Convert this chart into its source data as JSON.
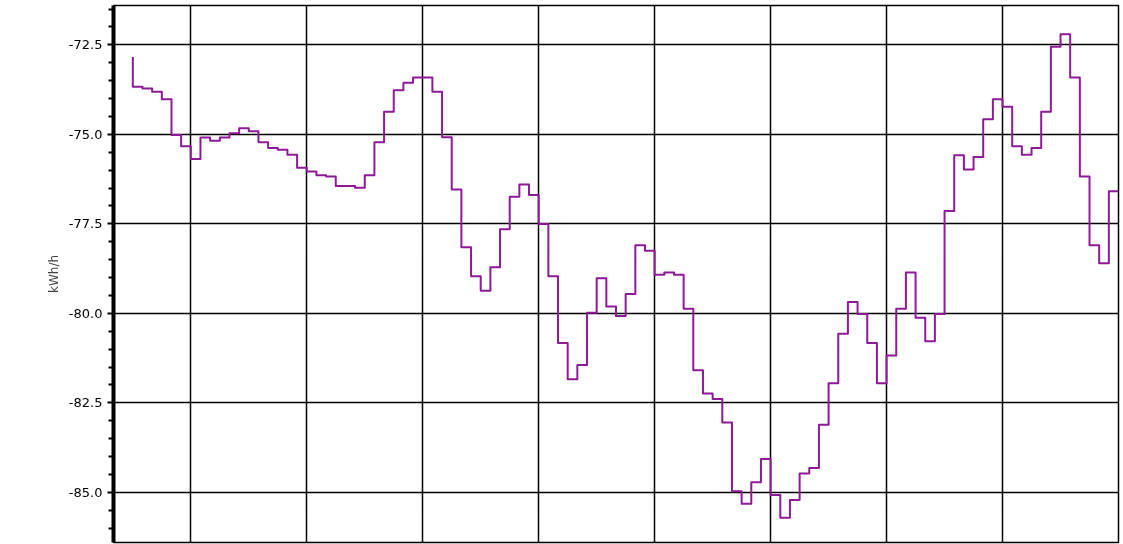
{
  "chart_data": {
    "type": "step",
    "ylabel": "kWh/h",
    "categories": [
      null,
      null,
      null,
      null,
      null,
      null,
      null,
      null,
      null,
      null,
      null,
      null,
      null,
      null,
      null,
      null,
      null,
      null,
      null,
      null,
      null,
      null,
      null,
      null,
      null,
      null,
      null,
      null,
      null,
      null,
      null,
      null,
      null,
      null,
      null,
      null,
      null,
      null,
      null,
      null,
      null,
      null,
      null,
      null,
      null,
      null,
      null,
      null,
      null,
      null,
      null,
      null,
      null,
      null,
      null,
      null,
      null,
      null,
      null,
      null,
      null,
      null,
      null,
      null,
      null,
      null,
      null,
      null,
      null,
      null,
      null,
      null,
      null,
      null,
      null,
      null,
      null,
      null,
      null,
      null,
      null,
      null,
      null,
      null,
      null,
      null,
      null,
      null,
      null,
      null,
      null,
      null,
      null,
      null,
      null,
      null,
      null,
      null,
      null,
      null,
      null,
      null,
      null
    ],
    "series": [
      {
        "color": "#8e1a98",
        "values": [
          -72.84,
          -73.67,
          -73.72,
          -73.81,
          -74.02,
          -75.02,
          -75.33,
          -75.69,
          -75.09,
          -75.18,
          -75.09,
          -74.97,
          -74.83,
          -74.91,
          -75.22,
          -75.38,
          -75.43,
          -75.57,
          -75.93,
          -76.04,
          -76.14,
          -76.18,
          -76.44,
          -76.44,
          -76.49,
          -76.14,
          -75.22,
          -74.37,
          -73.77,
          -73.56,
          -73.41,
          -73.41,
          -73.81,
          -75.08,
          -76.54,
          -78.15,
          -78.96,
          -79.37,
          -78.71,
          -77.65,
          -76.74,
          -76.4,
          -76.69,
          -77.5,
          -78.96,
          -80.83,
          -81.84,
          -81.44,
          -79.98,
          -79.02,
          -79.81,
          -80.07,
          -79.46,
          -78.1,
          -78.25,
          -78.92,
          -78.86,
          -78.92,
          -79.87,
          -81.59,
          -82.24,
          -82.39,
          -83.05,
          -84.97,
          -85.32,
          -84.72,
          -84.07,
          -85.07,
          -85.71,
          -85.21,
          -84.47,
          -84.32,
          -83.11,
          -81.95,
          -80.57,
          -79.68,
          -80.02,
          -80.83,
          -81.95,
          -81.18,
          -79.87,
          -78.86,
          -80.12,
          -80.78,
          -80.02,
          -77.14,
          -75.58,
          -75.98,
          -75.63,
          -74.58,
          -74.02,
          -74.23,
          -75.33,
          -75.57,
          -75.38,
          -74.37,
          -72.55,
          -72.2,
          -73.41,
          -76.18,
          -78.1,
          -78.6,
          -76.59
        ]
      }
    ],
    "ylim": [
      -86.4,
      -71.4
    ],
    "yticks": [
      {
        "value": -86,
        "label": null
      },
      {
        "value": -85.5,
        "label": null
      },
      {
        "value": -85,
        "label": "-85.0"
      },
      {
        "value": -84.5,
        "label": null
      },
      {
        "value": -84,
        "label": null
      },
      {
        "value": -83.5,
        "label": null
      },
      {
        "value": -83,
        "label": null
      },
      {
        "value": -82.5,
        "label": "-82.5"
      },
      {
        "value": -82,
        "label": null
      },
      {
        "value": -81.5,
        "label": null
      },
      {
        "value": -81,
        "label": null
      },
      {
        "value": -80.5,
        "label": null
      },
      {
        "value": -80,
        "label": "-80.0"
      },
      {
        "value": -79.5,
        "label": null
      },
      {
        "value": -79,
        "label": null
      },
      {
        "value": -78.5,
        "label": null
      },
      {
        "value": -78,
        "label": null
      },
      {
        "value": -77.5,
        "label": "-77.5"
      },
      {
        "value": -77,
        "label": null
      },
      {
        "value": -76.5,
        "label": null
      },
      {
        "value": -76,
        "label": null
      },
      {
        "value": -75.5,
        "label": null
      },
      {
        "value": -75,
        "label": "-75.0"
      },
      {
        "value": -74.5,
        "label": null
      },
      {
        "value": -74,
        "label": null
      },
      {
        "value": -73.5,
        "label": null
      },
      {
        "value": -73,
        "label": null
      },
      {
        "value": -72.5,
        "label": "-72.5"
      },
      {
        "value": -72,
        "label": null
      },
      {
        "value": -71.5,
        "label": null
      }
    ],
    "grid": true,
    "marker": "none",
    "line_style": "solid"
  }
}
